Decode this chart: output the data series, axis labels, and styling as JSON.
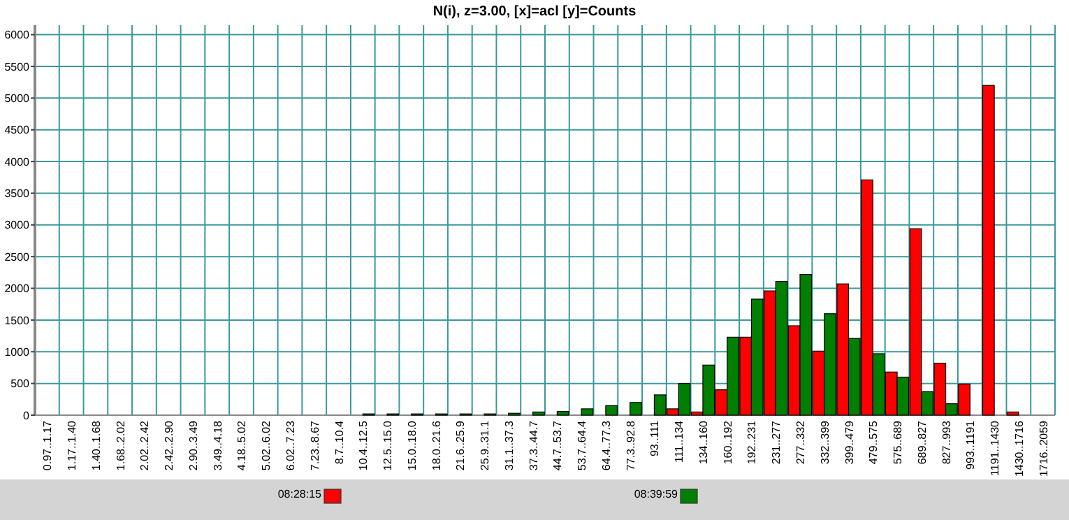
{
  "chart_data": {
    "type": "bar",
    "title": "N(i), z=3.00, [x]=acl [y]=Counts",
    "categories": [
      "0.97..1.17",
      "1.17..1.40",
      "1.40..1.68",
      "1.68..2.02",
      "2.02..2.42",
      "2.42..2.90",
      "2.90..3.49",
      "3.49..4.18",
      "4.18..5.02",
      "5.02..6.02",
      "6.02..7.23",
      "7.23..8.67",
      "8.7..10.4",
      "10.4..12.5",
      "12.5..15.0",
      "15.0..18.0",
      "18.0..21.6",
      "21.6..25.9",
      "25.9..31.1",
      "31.1..37.3",
      "37.3..44.7",
      "44.7..53.7",
      "53.7..64.4",
      "64.4..77.3",
      "77.3..92.8",
      "93..111",
      "111..134",
      "134..160",
      "160..192",
      "192..231",
      "231..277",
      "277..332",
      "332..399",
      "399..479",
      "479..575",
      "575..689",
      "689..827",
      "827..993",
      "993..1191",
      "1191..1430",
      "1430..1716",
      "1716..2059"
    ],
    "series": [
      {
        "name": "08:28:15",
        "color": "#ff0000",
        "values": [
          0,
          0,
          0,
          0,
          0,
          0,
          0,
          0,
          0,
          0,
          0,
          0,
          0,
          0,
          0,
          0,
          0,
          0,
          0,
          0,
          0,
          0,
          0,
          0,
          0,
          0,
          100,
          50,
          400,
          1230,
          1960,
          1410,
          1010,
          2070,
          3710,
          680,
          2940,
          820,
          490,
          5200,
          50,
          0
        ]
      },
      {
        "name": "08:39:59",
        "color": "#007f00",
        "values": [
          0,
          0,
          0,
          0,
          0,
          0,
          0,
          0,
          0,
          0,
          0,
          0,
          0,
          20,
          20,
          20,
          20,
          20,
          20,
          30,
          50,
          60,
          100,
          150,
          200,
          320,
          500,
          790,
          1230,
          1830,
          2110,
          2220,
          1600,
          1210,
          970,
          600,
          370,
          180,
          0,
          0,
          0,
          0
        ]
      }
    ],
    "ylim": [
      0,
      6150
    ],
    "yticks": [
      0,
      500,
      1000,
      1500,
      2000,
      2500,
      3000,
      3500,
      4000,
      4500,
      5000,
      5500,
      6000
    ],
    "grid": true,
    "legend": "bottom"
  }
}
